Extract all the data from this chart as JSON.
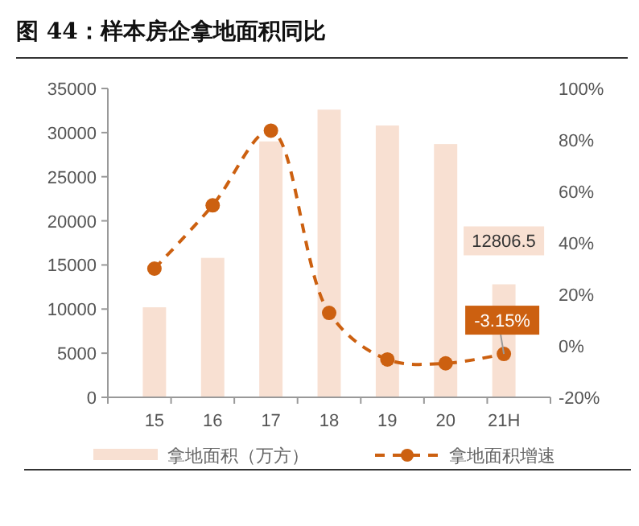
{
  "chart_data": {
    "type": "bar",
    "title": "图 44：样本房企拿地面积同比",
    "categories": [
      "15",
      "16",
      "17",
      "18",
      "19",
      "20",
      "21H"
    ],
    "series": [
      {
        "name": "拿地面积（万方）",
        "color": "#f8e0d2",
        "values": [
          10200,
          15800,
          29000,
          32600,
          30800,
          28700,
          12806.5
        ],
        "value_labels": [
          null,
          null,
          null,
          null,
          null,
          null,
          "12806.5"
        ]
      },
      {
        "name": "拿地面积增速",
        "type": "line",
        "axis": "y2",
        "color": "#cc6010",
        "values": [
          30.0,
          54.6,
          83.6,
          12.8,
          -5.3,
          -6.8,
          -3.15
        ],
        "value_labels": [
          null,
          null,
          null,
          null,
          null,
          null,
          "-3.15%"
        ],
        "marker": "circle",
        "line_style": "dashed"
      }
    ],
    "ylim": [
      0,
      35000
    ],
    "yticks": [
      0,
      5000,
      10000,
      15000,
      20000,
      25000,
      30000,
      35000
    ],
    "y2lim": [
      -20,
      100
    ],
    "y2ticks": [
      {
        "value": -20,
        "label": "-20%"
      },
      {
        "value": 0,
        "label": "0%"
      },
      {
        "value": 20,
        "label": "20%"
      },
      {
        "value": 40,
        "label": "40%"
      },
      {
        "value": 60,
        "label": "60%"
      },
      {
        "value": 80,
        "label": "80%"
      },
      {
        "value": 100,
        "label": "100%"
      }
    ],
    "legend": "bottom",
    "grid": false
  }
}
